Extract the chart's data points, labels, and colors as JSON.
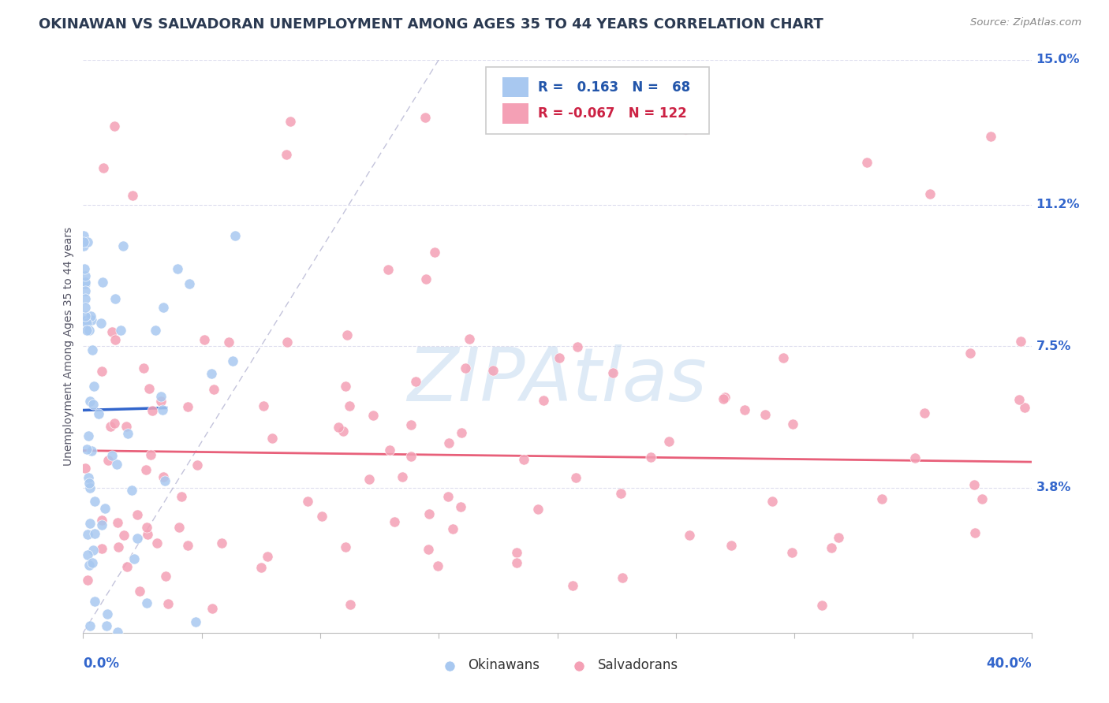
{
  "title": "OKINAWAN VS SALVADORAN UNEMPLOYMENT AMONG AGES 35 TO 44 YEARS CORRELATION CHART",
  "source": "Source: ZipAtlas.com",
  "xlim": [
    0.0,
    40.0
  ],
  "ylim": [
    0.0,
    15.0
  ],
  "okinawan_R": 0.163,
  "okinawan_N": 68,
  "salvadoran_R": -0.067,
  "salvadoran_N": 122,
  "okinawan_color": "#A8C8F0",
  "salvadoran_color": "#F4A0B5",
  "okinawan_trendline_color": "#3366CC",
  "salvadoran_trendline_color": "#E8607A",
  "reference_line_color": "#AAAACC",
  "background_color": "#FFFFFF",
  "title_color": "#2B3A52",
  "source_color": "#888888",
  "axis_label_color": "#3366CC",
  "y_tick_vals": [
    3.8,
    7.5,
    11.2,
    15.0
  ],
  "y_tick_labels": [
    "3.8%",
    "7.5%",
    "11.2%",
    "15.0%"
  ],
  "legend_border_color": "#CCCCCC",
  "watermark_text": "ZIPAtlas",
  "watermark_color": "#C8DCF0"
}
